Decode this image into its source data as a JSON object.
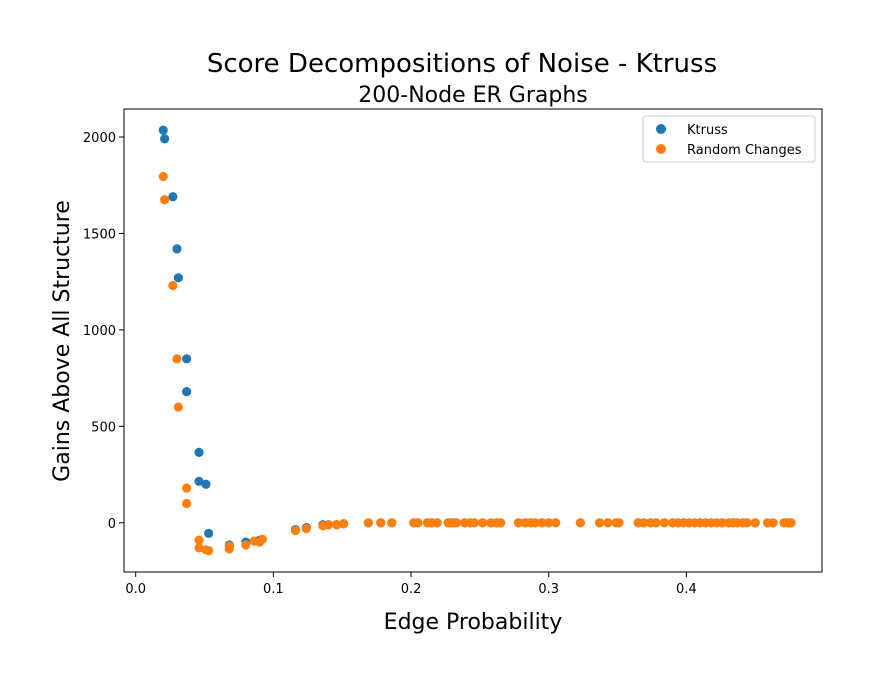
{
  "chart_data": {
    "type": "scatter",
    "title": "Score Decompositions of Noise - Ktruss",
    "subtitle": "200-Node ER Graphs",
    "xlabel": "Edge Probability",
    "ylabel": "Gains Above All Structure",
    "xlim": [
      -0.0085,
      0.4985
    ],
    "ylim": [
      -255,
      2145
    ],
    "xticks": [
      {
        "value": 0.0,
        "label": "0.0"
      },
      {
        "value": 0.1,
        "label": "0.1"
      },
      {
        "value": 0.2,
        "label": "0.2"
      },
      {
        "value": 0.3,
        "label": "0.3"
      },
      {
        "value": 0.4,
        "label": "0.4"
      }
    ],
    "yticks": [
      {
        "value": 0,
        "label": "0"
      },
      {
        "value": 500,
        "label": "500"
      },
      {
        "value": 1000,
        "label": "1000"
      },
      {
        "value": 1500,
        "label": "1500"
      },
      {
        "value": 2000,
        "label": "2000"
      }
    ],
    "grid": false,
    "legend_position": "top-right",
    "series": [
      {
        "name": "Ktruss",
        "color": "#1f77b4",
        "points": [
          [
            0.02,
            2035
          ],
          [
            0.021,
            1990
          ],
          [
            0.027,
            1690
          ],
          [
            0.03,
            1420
          ],
          [
            0.031,
            1270
          ],
          [
            0.037,
            850
          ],
          [
            0.037,
            680
          ],
          [
            0.046,
            365
          ],
          [
            0.046,
            215
          ],
          [
            0.051,
            200
          ],
          [
            0.053,
            -55
          ],
          [
            0.068,
            -115
          ],
          [
            0.08,
            -100
          ],
          [
            0.09,
            -90
          ],
          [
            0.116,
            -35
          ],
          [
            0.124,
            -25
          ],
          [
            0.136,
            -10
          ],
          [
            0.14,
            -10
          ],
          [
            0.146,
            -10
          ],
          [
            0.151,
            -5
          ],
          [
            0.169,
            0
          ],
          [
            0.178,
            0
          ],
          [
            0.186,
            0
          ],
          [
            0.202,
            0
          ],
          [
            0.205,
            0
          ],
          [
            0.212,
            0
          ],
          [
            0.215,
            0
          ],
          [
            0.219,
            0
          ],
          [
            0.227,
            0
          ],
          [
            0.229,
            0
          ],
          [
            0.231,
            0
          ],
          [
            0.233,
            0
          ],
          [
            0.239,
            0
          ],
          [
            0.243,
            0
          ],
          [
            0.246,
            0
          ],
          [
            0.252,
            0
          ],
          [
            0.258,
            0
          ],
          [
            0.262,
            0
          ],
          [
            0.265,
            0
          ],
          [
            0.278,
            0
          ],
          [
            0.283,
            0
          ],
          [
            0.287,
            0
          ],
          [
            0.29,
            0
          ],
          [
            0.295,
            0
          ],
          [
            0.3,
            0
          ],
          [
            0.305,
            0
          ],
          [
            0.323,
            0
          ],
          [
            0.337,
            0
          ],
          [
            0.343,
            0
          ],
          [
            0.349,
            0
          ],
          [
            0.351,
            0
          ],
          [
            0.365,
            0
          ],
          [
            0.369,
            0
          ],
          [
            0.374,
            0
          ],
          [
            0.378,
            0
          ],
          [
            0.384,
            0
          ],
          [
            0.39,
            0
          ],
          [
            0.394,
            0
          ],
          [
            0.398,
            0
          ],
          [
            0.402,
            0
          ],
          [
            0.406,
            0
          ],
          [
            0.41,
            0
          ],
          [
            0.414,
            0
          ],
          [
            0.418,
            0
          ],
          [
            0.422,
            0
          ],
          [
            0.426,
            0
          ],
          [
            0.431,
            0
          ],
          [
            0.434,
            0
          ],
          [
            0.437,
            0
          ],
          [
            0.441,
            0
          ],
          [
            0.444,
            0
          ],
          [
            0.45,
            0
          ],
          [
            0.459,
            0
          ],
          [
            0.463,
            0
          ],
          [
            0.471,
            0
          ],
          [
            0.474,
            0
          ],
          [
            0.476,
            0
          ]
        ]
      },
      {
        "name": "Random Changes",
        "color": "#ff7f0e",
        "points": [
          [
            0.02,
            1795
          ],
          [
            0.021,
            1675
          ],
          [
            0.027,
            1230
          ],
          [
            0.03,
            850
          ],
          [
            0.031,
            600
          ],
          [
            0.037,
            180
          ],
          [
            0.037,
            100
          ],
          [
            0.046,
            -90
          ],
          [
            0.046,
            -130
          ],
          [
            0.051,
            -140
          ],
          [
            0.053,
            -145
          ],
          [
            0.068,
            -120
          ],
          [
            0.068,
            -135
          ],
          [
            0.08,
            -115
          ],
          [
            0.086,
            -95
          ],
          [
            0.09,
            -100
          ],
          [
            0.092,
            -85
          ],
          [
            0.116,
            -40
          ],
          [
            0.124,
            -30
          ],
          [
            0.136,
            -15
          ],
          [
            0.14,
            -10
          ],
          [
            0.146,
            -10
          ],
          [
            0.151,
            -5
          ],
          [
            0.169,
            0
          ],
          [
            0.178,
            0
          ],
          [
            0.186,
            0
          ],
          [
            0.202,
            0
          ],
          [
            0.205,
            0
          ],
          [
            0.212,
            0
          ],
          [
            0.215,
            0
          ],
          [
            0.219,
            0
          ],
          [
            0.227,
            0
          ],
          [
            0.229,
            0
          ],
          [
            0.231,
            0
          ],
          [
            0.233,
            0
          ],
          [
            0.239,
            0
          ],
          [
            0.243,
            0
          ],
          [
            0.246,
            0
          ],
          [
            0.252,
            0
          ],
          [
            0.258,
            0
          ],
          [
            0.262,
            0
          ],
          [
            0.265,
            0
          ],
          [
            0.278,
            0
          ],
          [
            0.283,
            0
          ],
          [
            0.287,
            0
          ],
          [
            0.29,
            0
          ],
          [
            0.295,
            0
          ],
          [
            0.3,
            0
          ],
          [
            0.305,
            0
          ],
          [
            0.323,
            0
          ],
          [
            0.337,
            0
          ],
          [
            0.343,
            0
          ],
          [
            0.349,
            0
          ],
          [
            0.351,
            0
          ],
          [
            0.365,
            0
          ],
          [
            0.369,
            0
          ],
          [
            0.374,
            0
          ],
          [
            0.378,
            0
          ],
          [
            0.384,
            0
          ],
          [
            0.39,
            0
          ],
          [
            0.394,
            0
          ],
          [
            0.398,
            0
          ],
          [
            0.402,
            0
          ],
          [
            0.406,
            0
          ],
          [
            0.41,
            0
          ],
          [
            0.414,
            0
          ],
          [
            0.418,
            0
          ],
          [
            0.422,
            0
          ],
          [
            0.426,
            0
          ],
          [
            0.431,
            0
          ],
          [
            0.434,
            0
          ],
          [
            0.437,
            0
          ],
          [
            0.441,
            0
          ],
          [
            0.444,
            0
          ],
          [
            0.45,
            0
          ],
          [
            0.459,
            0
          ],
          [
            0.463,
            0
          ],
          [
            0.471,
            0
          ],
          [
            0.474,
            0
          ],
          [
            0.476,
            0
          ]
        ]
      }
    ]
  }
}
